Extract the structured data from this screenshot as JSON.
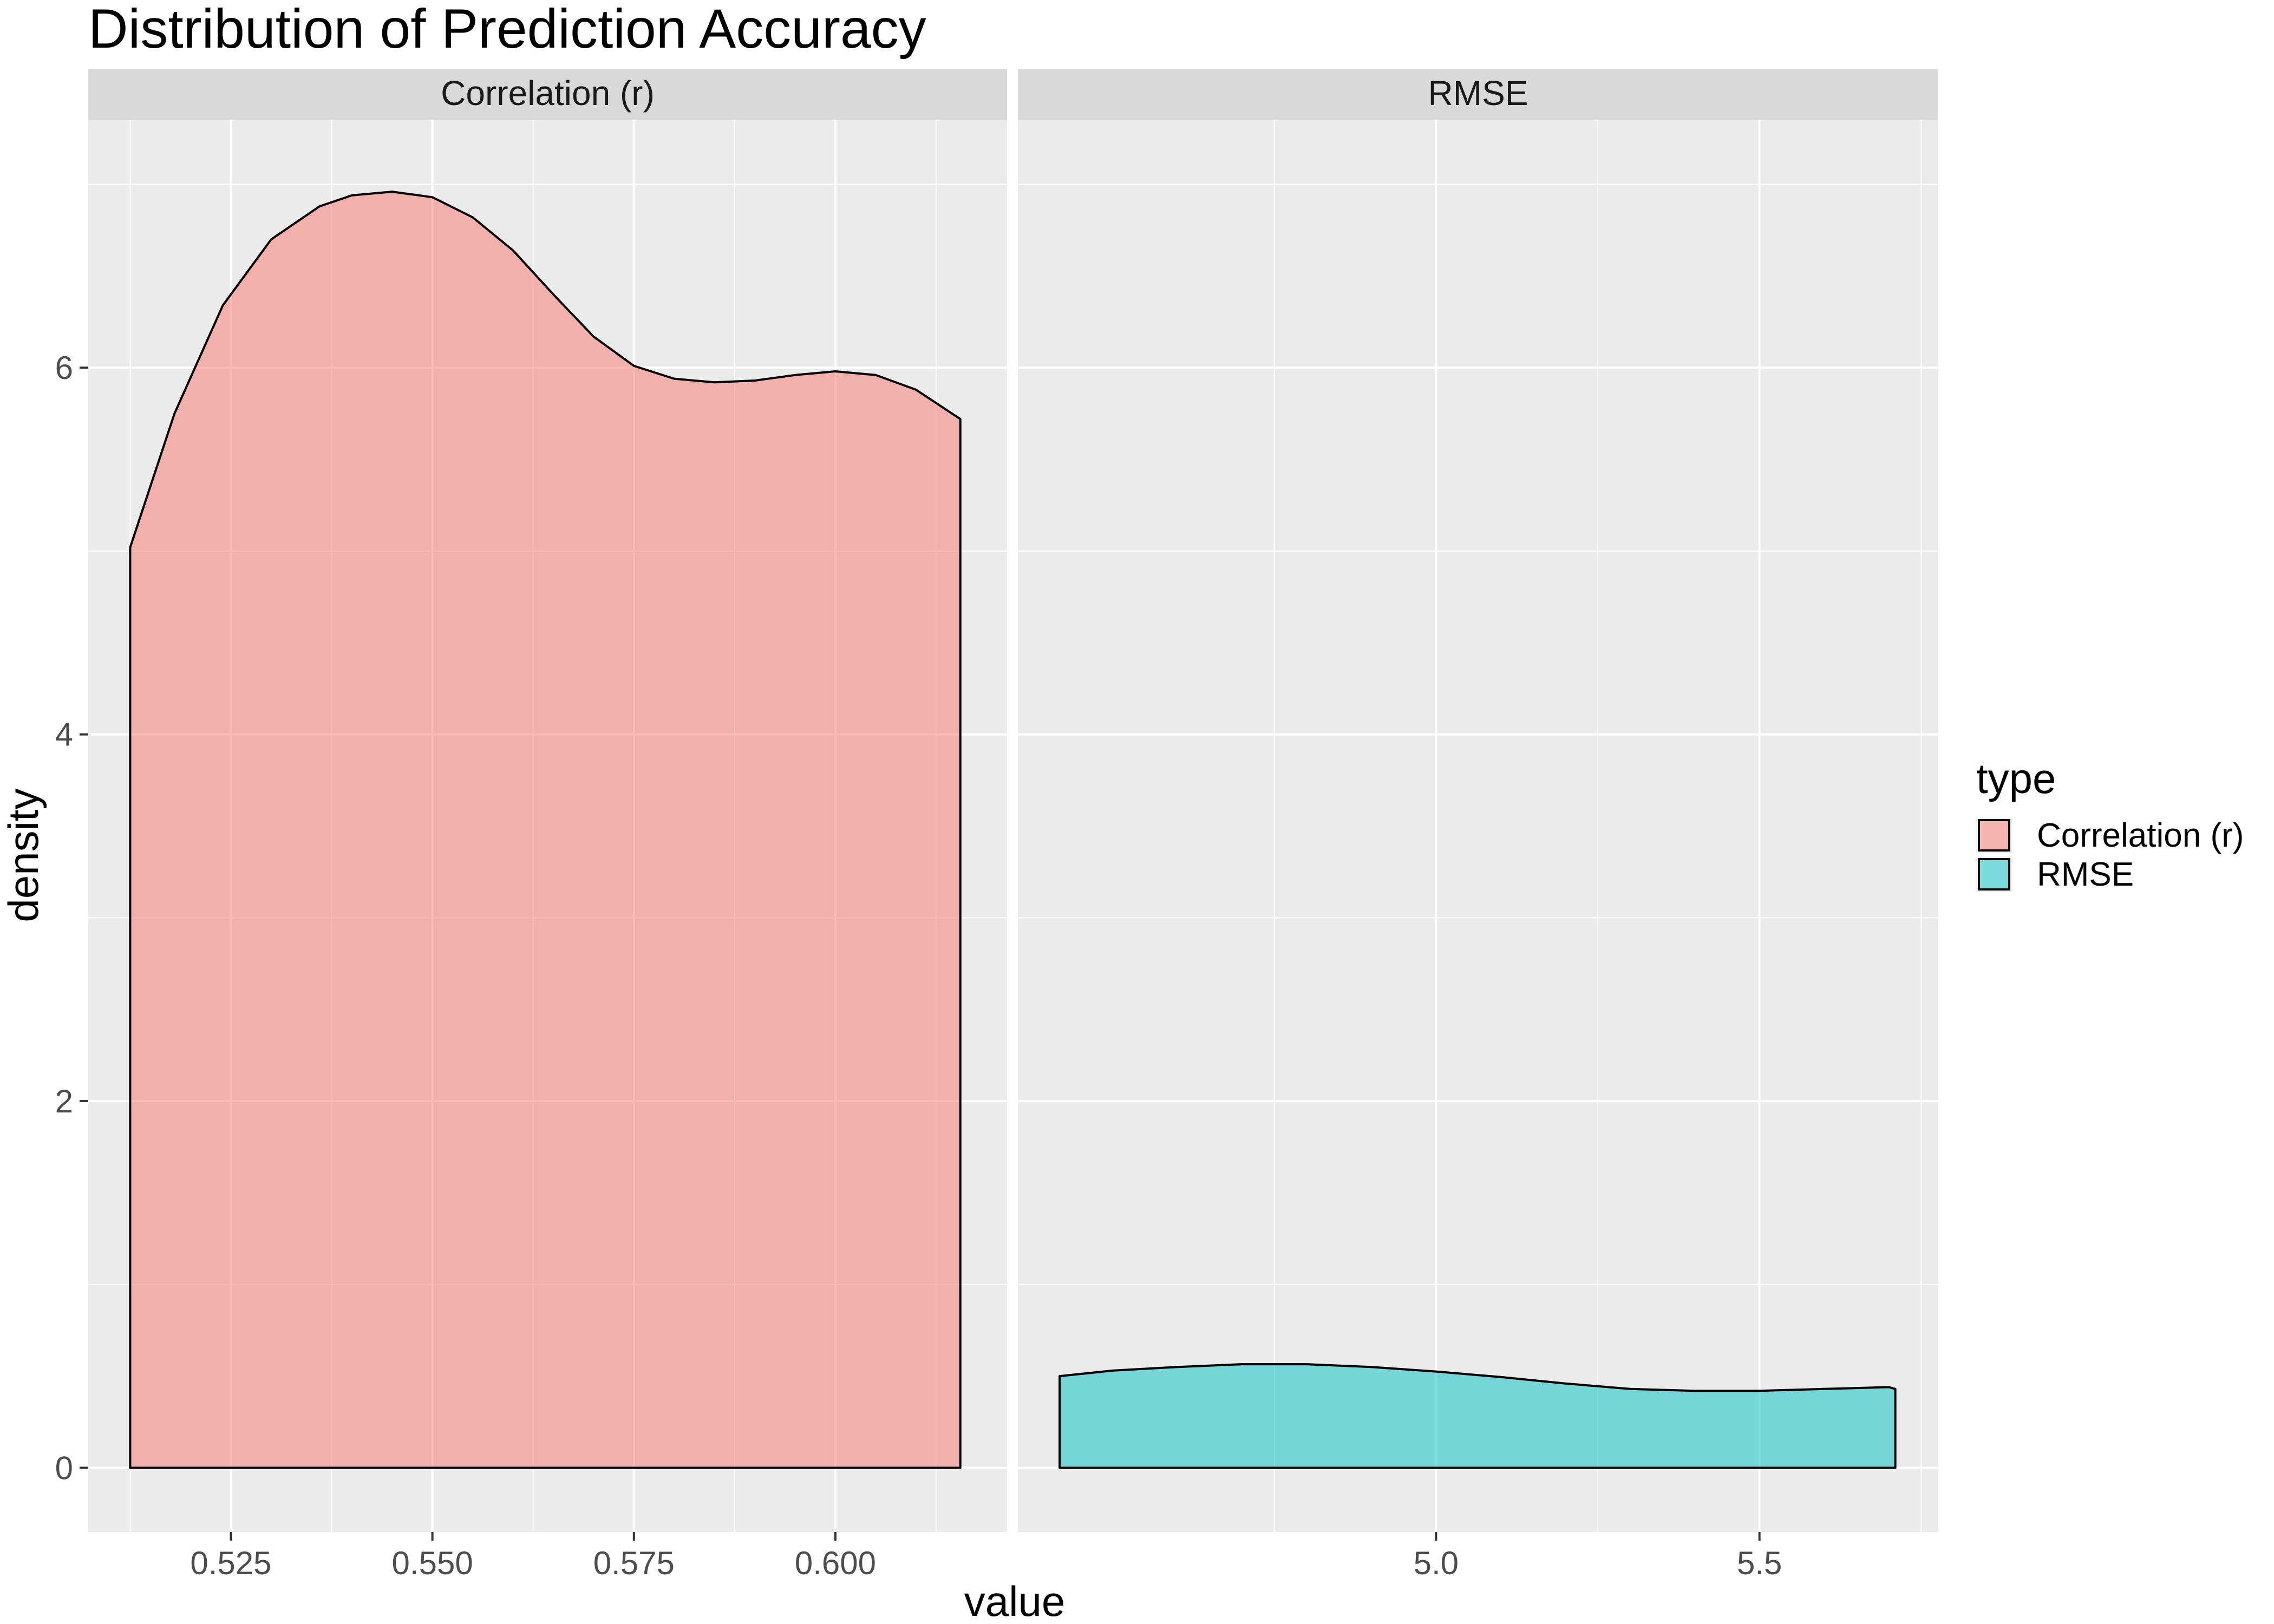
{
  "chart_data": {
    "type": "area",
    "title": "Distribution of Prediction Accuracy",
    "xlabel": "value",
    "ylabel": "density",
    "grid": true,
    "legend_position": "right",
    "legend": {
      "title": "type",
      "entries": [
        {
          "label": "Correlation (r)",
          "color": "#F8766D"
        },
        {
          "label": "RMSE",
          "color": "#00BFC4"
        }
      ]
    },
    "y_axis": {
      "ylim": [
        -0.35,
        7.35
      ],
      "ticks": [
        0,
        2,
        4,
        6
      ],
      "tick_labels": [
        "0",
        "2",
        "4",
        "6"
      ]
    },
    "facets": [
      {
        "label": "Correlation (r)",
        "series_name": "Correlation (r)",
        "color": "#F8766D",
        "xlim": [
          0.5073,
          0.6213
        ],
        "x_ticks": [
          0.525,
          0.55,
          0.575,
          0.6
        ],
        "x_tick_labels": [
          "0.525",
          "0.550",
          "0.575",
          "0.600"
        ],
        "x": [
          0.5125,
          0.518,
          0.524,
          0.53,
          0.536,
          0.54,
          0.545,
          0.55,
          0.555,
          0.56,
          0.565,
          0.57,
          0.575,
          0.58,
          0.585,
          0.59,
          0.595,
          0.6,
          0.605,
          0.61,
          0.6155
        ],
        "y": [
          5.02,
          5.75,
          6.34,
          6.7,
          6.88,
          6.94,
          6.96,
          6.93,
          6.82,
          6.64,
          6.4,
          6.17,
          6.01,
          5.94,
          5.92,
          5.93,
          5.96,
          5.98,
          5.96,
          5.88,
          5.72
        ]
      },
      {
        "label": "RMSE",
        "series_name": "RMSE",
        "color": "#00BFC4",
        "xlim": [
          4.3535,
          5.7765
        ],
        "x_ticks": [
          5.0,
          5.5
        ],
        "x_tick_labels": [
          "5.0",
          "5.5"
        ],
        "x": [
          4.418,
          4.5,
          4.6,
          4.7,
          4.8,
          4.9,
          5.0,
          5.1,
          5.2,
          5.3,
          5.4,
          5.5,
          5.6,
          5.7,
          5.71
        ],
        "y": [
          0.5,
          0.53,
          0.55,
          0.565,
          0.565,
          0.55,
          0.525,
          0.495,
          0.46,
          0.43,
          0.42,
          0.42,
          0.43,
          0.44,
          0.43
        ]
      }
    ]
  }
}
